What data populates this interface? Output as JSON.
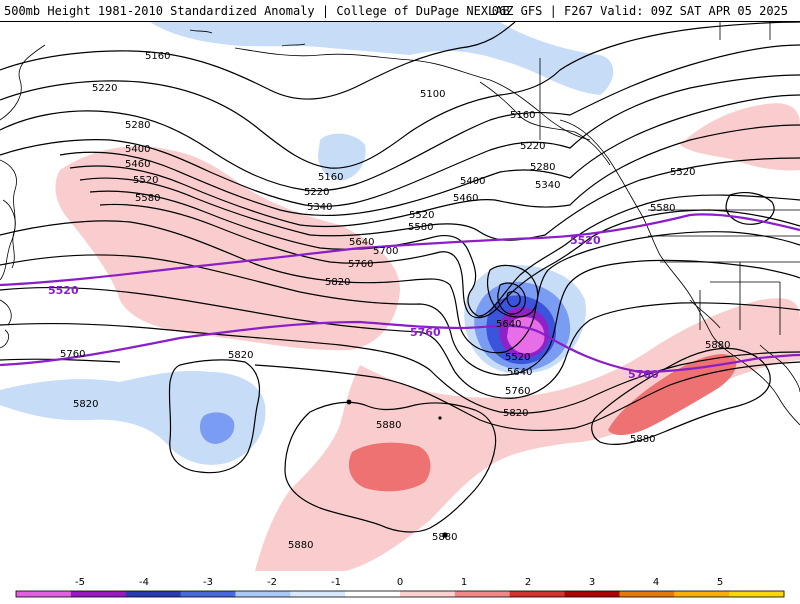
{
  "title": {
    "left": "500mb Height 1981-2010 Standardized Anomaly | College of DuPage NEXLAB",
    "right": "06Z GFS | F267 Valid: 09Z SAT APR 05 2025"
  },
  "contour_labels": [
    "5160",
    "5220",
    "5280",
    "5400",
    "5460",
    "5520",
    "5580",
    "5220",
    "5160",
    "5340",
    "5100",
    "5160",
    "5220",
    "5280",
    "5340",
    "5400",
    "5460",
    "5520",
    "5580",
    "5640",
    "5700",
    "5760",
    "5820",
    "5880",
    "5580",
    "5520",
    "5640",
    "5520",
    "5640",
    "5760",
    "5820",
    "5760",
    "5820",
    "5880",
    "5880",
    "5880",
    "5880",
    "5820"
  ],
  "reference_labels": [
    "5520",
    "5760",
    "5520",
    "5760"
  ],
  "colorbar": {
    "ticks": [
      "-5",
      "-4",
      "-3",
      "-2",
      "-1",
      "0",
      "1",
      "2",
      "3",
      "4",
      "5"
    ],
    "colors": [
      "#e060e0",
      "#9818c8",
      "#2838b8",
      "#4868e0",
      "#a8c8f8",
      "#d8e8fc",
      "#ffffff",
      "#fcd0d0",
      "#f08888",
      "#d83030",
      "#b00000",
      "#e87800",
      "#f8b000",
      "#f8d800"
    ]
  },
  "anomaly_colors": {
    "neg1": "#c6dcf7",
    "neg2": "#7a9cf2",
    "neg3": "#3c54dc",
    "neg4": "#8e22c8",
    "neg5": "#e86ee8",
    "pos1": "#f9cdcd",
    "pos2": "#ee7272"
  },
  "reference_line_color": "#8a1fc8"
}
